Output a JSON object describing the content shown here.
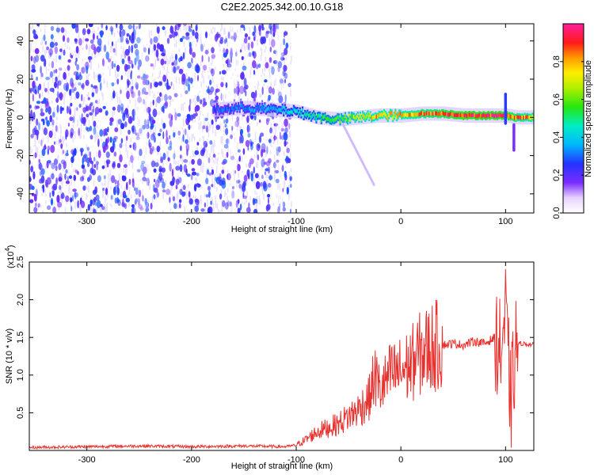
{
  "title": "C2E2.2025.342.00.10.G18",
  "colors": {
    "snr_line": "#e8322f",
    "spectrogram_noise": "#5a1ee6",
    "spectrogram_pale": "#d8c6ff"
  },
  "chart_data": [
    {
      "type": "heatmap",
      "xlabel": "Height of straight line (km)",
      "ylabel": "Frequency (Hz)",
      "xlim": [
        -355,
        127
      ],
      "ylim": [
        -50,
        49
      ],
      "x_ticks": [
        -300,
        -200,
        -100,
        0,
        100
      ],
      "y_ticks": [
        -40,
        -20,
        0,
        20,
        40
      ],
      "noise_region_x": [
        -355,
        -105
      ],
      "signal_track": {
        "x": [
          -180,
          -150,
          -120,
          -100,
          -80,
          -60,
          -40,
          -20,
          0,
          20,
          40,
          60,
          80,
          100,
          110,
          127
        ],
        "frequency": [
          4,
          5,
          4,
          3,
          0,
          -1,
          0,
          1,
          1,
          2,
          2,
          1,
          1,
          1,
          0,
          0
        ],
        "amplitude": [
          0.3,
          0.35,
          0.4,
          0.45,
          0.55,
          0.6,
          0.75,
          0.85,
          0.85,
          0.9,
          0.95,
          1.0,
          1.0,
          1.0,
          0.9,
          0.85
        ]
      },
      "colorbar": {
        "label": "Normalized spectral amplitude",
        "range": [
          0,
          1
        ],
        "ticks": [
          "0.0",
          "0.2",
          "0.4",
          "0.6",
          "0.8"
        ]
      }
    },
    {
      "type": "line",
      "xlabel": "Height of straight line (km)",
      "ylabel": "SNR (10 * v/v)",
      "ylabel_multiplier": "(x10",
      "ylabel_exponent": "4",
      "xlim": [
        -355,
        127
      ],
      "ylim": [
        0,
        2.5
      ],
      "x_ticks": [
        -300,
        -200,
        -100,
        0,
        100
      ],
      "y_ticks": [
        "0.5",
        "1.0",
        "1.5",
        "2.0",
        "2.5"
      ],
      "series": [
        {
          "x": [
            -355,
            -300,
            -250,
            -200,
            -150,
            -110,
            -100,
            -90,
            -80,
            -70,
            -60,
            -50,
            -40,
            -30,
            -25,
            -20,
            -10,
            0,
            10,
            20,
            30,
            40,
            50,
            60,
            70,
            80,
            90,
            95,
            100,
            105,
            110,
            115,
            127
          ],
          "y": [
            0.04,
            0.05,
            0.06,
            0.05,
            0.06,
            0.05,
            0.07,
            0.15,
            0.25,
            0.3,
            0.35,
            0.45,
            0.55,
            0.7,
            1.0,
            0.8,
            1.0,
            1.05,
            1.15,
            1.3,
            1.38,
            1.4,
            1.42,
            1.4,
            1.45,
            1.42,
            1.5,
            1.3,
            1.8,
            0.6,
            1.4,
            1.42,
            1.4
          ]
        }
      ]
    }
  ]
}
